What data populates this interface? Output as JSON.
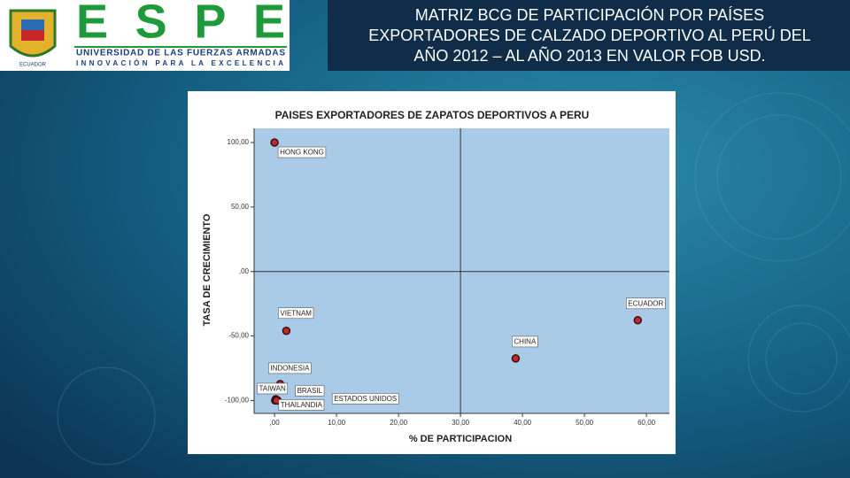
{
  "slide": {
    "logo": {
      "name": "ESPE",
      "university": "UNIVERSIDAD DE LAS FUERZAS ARMADAS",
      "motto": "INNOVACIÓN PARA LA EXCELENCIA",
      "country": "ECUADOR"
    },
    "title_lines": [
      "MATRIZ BCG DE PARTICIPACIÓN POR PAÍSES",
      "EXPORTADORES  DE CALZADO DEPORTIVO AL PERÚ DEL",
      "AÑO 2012 – AL AÑO 2013 EN VALOR FOB USD."
    ]
  },
  "chart_data": {
    "type": "scatter",
    "title": "PAISES EXPORTADORES DE ZAPATOS DEPORTIVOS A PERU",
    "x_label": "% DE PARTICIPACION",
    "y_label": "TASA DE CRECIMIENTO",
    "labels": [
      "HONG KONG",
      "VIETNAM",
      "ECUADOR",
      "CHINA",
      "INDONESIA",
      "TAIWAN",
      "BRASIL",
      "THAILANDIA",
      "ESTADOS UNIDOS"
    ],
    "x": [
      0,
      1.9,
      58.6,
      38.9,
      0.9,
      0.2,
      0.5,
      0.1,
      0.3
    ],
    "values": [
      100,
      -46,
      -37.8,
      -67.4,
      -87.3,
      -99,
      -100,
      -100,
      -100
    ],
    "color": "#c0272d",
    "plot_color": "#a9cbe8",
    "reference_lines": {
      "x": 30,
      "y": 0
    },
    "xlim": [
      -3.3,
      63.7
    ],
    "ylim": [
      -110,
      111
    ],
    "xticks": [
      {
        "value": 0,
        "label": ",00"
      },
      {
        "value": 10,
        "label": "10,00"
      },
      {
        "value": 20,
        "label": "20,00"
      },
      {
        "value": 30,
        "label": "30,00"
      },
      {
        "value": 40,
        "label": "40,00"
      },
      {
        "value": 50,
        "label": "50,00"
      },
      {
        "value": 60,
        "label": "60,00"
      }
    ],
    "yticks": [
      {
        "value": 100,
        "label": "100,00"
      },
      {
        "value": 50,
        "label": "50,00"
      },
      {
        "value": 0,
        "label": ",00"
      },
      {
        "value": -50,
        "label": "-50,00"
      },
      {
        "value": -100,
        "label": "-100,00"
      }
    ]
  }
}
